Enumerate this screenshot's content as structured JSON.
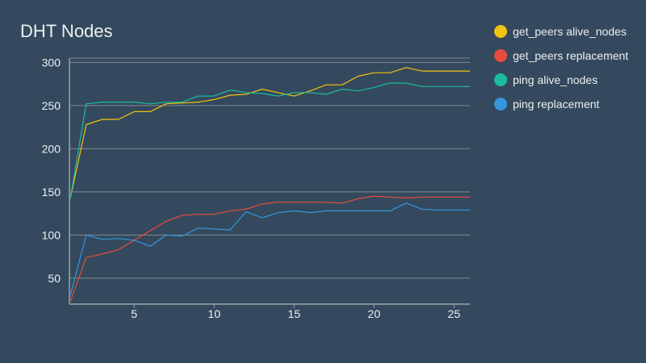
{
  "chart_data": {
    "type": "line",
    "title": "DHT Nodes",
    "xlabel": "",
    "ylabel": "",
    "x": [
      1,
      2,
      3,
      4,
      5,
      6,
      7,
      8,
      9,
      10,
      11,
      12,
      13,
      14,
      15,
      16,
      17,
      18,
      19,
      20,
      21,
      22,
      23,
      24,
      25,
      26
    ],
    "xlim": [
      1,
      26
    ],
    "ylim": [
      20,
      305
    ],
    "x_ticks": [
      5,
      10,
      15,
      20,
      25
    ],
    "y_ticks": [
      50,
      100,
      150,
      200,
      250,
      300
    ],
    "grid": true,
    "legend_position": "right",
    "series": [
      {
        "name": "get_peers alive_nodes",
        "color": "#f1c40f",
        "values": [
          142,
          228,
          234,
          234,
          243,
          243,
          252,
          253,
          254,
          257,
          262,
          263,
          269,
          265,
          261,
          267,
          274,
          274,
          284,
          288,
          288,
          294,
          290,
          290,
          290,
          290
        ]
      },
      {
        "name": "get_peers replacement",
        "color": "#e74c3c",
        "values": [
          23,
          74,
          78,
          83,
          94,
          105,
          116,
          123,
          124,
          124,
          128,
          130,
          136,
          138,
          138,
          138,
          138,
          137,
          142,
          145,
          144,
          143,
          144,
          144,
          144,
          144
        ]
      },
      {
        "name": "ping alive_nodes",
        "color": "#1abc9c",
        "values": [
          142,
          252,
          254,
          254,
          254,
          252,
          254,
          254,
          261,
          261,
          268,
          265,
          264,
          261,
          265,
          265,
          263,
          269,
          267,
          271,
          276,
          276,
          272,
          272,
          272,
          272
        ]
      },
      {
        "name": "ping replacement",
        "color": "#3498db",
        "values": [
          30,
          100,
          95,
          96,
          94,
          87,
          100,
          99,
          108,
          107,
          106,
          127,
          120,
          126,
          128,
          126,
          128,
          128,
          128,
          128,
          128,
          137,
          130,
          129,
          129,
          129
        ]
      }
    ]
  }
}
